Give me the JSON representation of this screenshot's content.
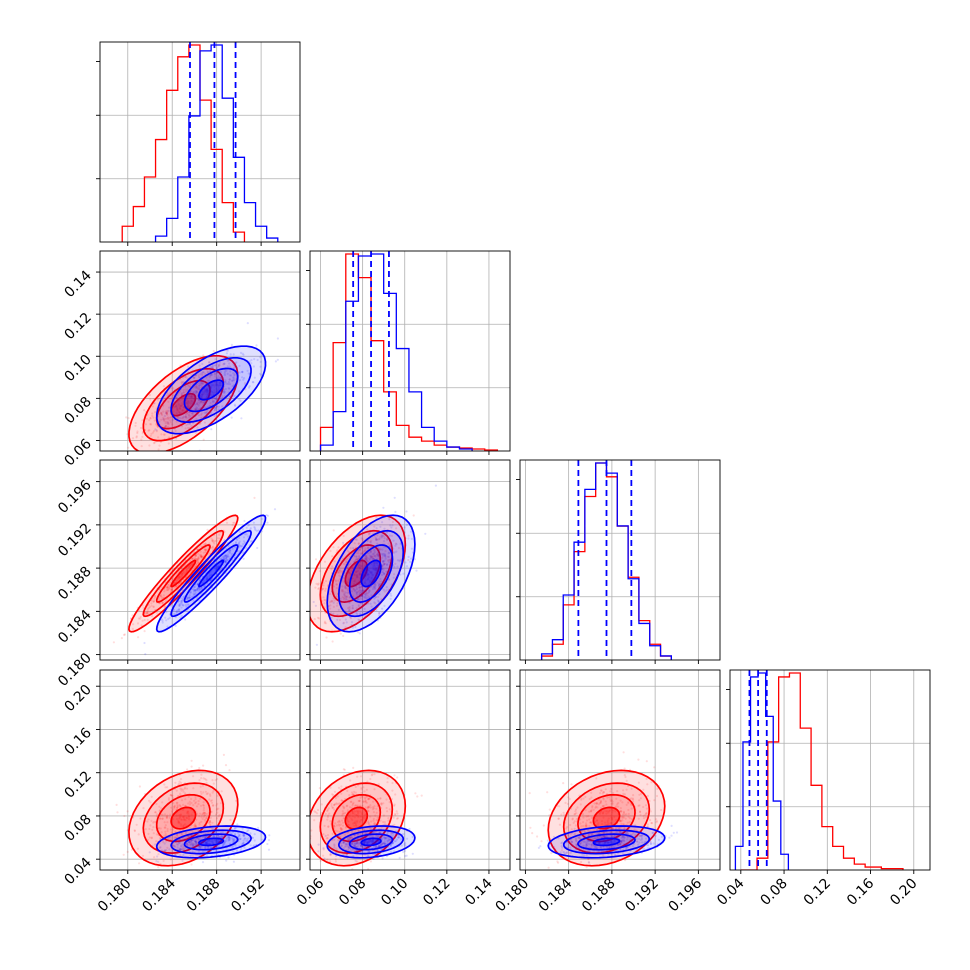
{
  "colors": {
    "series_a": "#ff0000",
    "series_b": "#0000ff",
    "grid": "#b0b0b0"
  },
  "chart_data": {
    "type": "corner",
    "grid": true,
    "params": [
      {
        "id": "p0",
        "range": [
          0.1775,
          0.1955
        ],
        "ticks": [
          "0.180",
          "0.184",
          "0.188",
          "0.192"
        ]
      },
      {
        "id": "p1",
        "range": [
          0.055,
          0.15
        ],
        "ticks": [
          "0.06",
          "0.08",
          "0.10",
          "0.12",
          "0.14"
        ]
      },
      {
        "id": "p2",
        "range": [
          0.1795,
          0.198
        ],
        "ticks": [
          "0.180",
          "0.184",
          "0.188",
          "0.192",
          "0.196"
        ]
      },
      {
        "id": "p3",
        "range": [
          0.03,
          0.215
        ],
        "ticks": [
          "0.04",
          "0.08",
          "0.12",
          "0.16",
          "0.20"
        ]
      }
    ],
    "series": [
      {
        "color": "#ff0000",
        "mean": [
          0.185,
          0.077,
          0.1875,
          0.078
        ],
        "std": [
          0.002,
          0.0095,
          0.0022,
          0.018
        ],
        "corr": {
          "1-0": 0.6,
          "2-0": 0.95,
          "2-1": 0.5,
          "3-0": 0.3,
          "3-1": 0.25,
          "3-2": 0.25
        },
        "hist": [
          {
            "edges": [
              0.1795,
              0.1805,
              0.1815,
              0.1825,
              0.1835,
              0.1845,
              0.1855,
              0.1865,
              0.1875,
              0.1885,
              0.1895,
              0.1905
            ],
            "counts": [
              0.08,
              0.18,
              0.33,
              0.52,
              0.77,
              0.94,
              1.0,
              0.72,
              0.47,
              0.2,
              0.05
            ]
          },
          {
            "edges": [
              0.06,
              0.066,
              0.072,
              0.078,
              0.084,
              0.09,
              0.096,
              0.102,
              0.108,
              0.114,
              0.12,
              0.126,
              0.132,
              0.138,
              0.144
            ],
            "counts": [
              0.12,
              0.55,
              1.0,
              0.88,
              0.56,
              0.3,
              0.13,
              0.07,
              0.05,
              0.03,
              0.02,
              0.015,
              0.01,
              0.005
            ]
          },
          {
            "edges": [
              0.1815,
              0.1825,
              0.1835,
              0.1845,
              0.1855,
              0.1865,
              0.1875,
              0.1885,
              0.1895,
              0.1905,
              0.1915,
              0.1925,
              0.1935
            ],
            "counts": [
              0.02,
              0.08,
              0.28,
              0.55,
              0.83,
              1.0,
              0.93,
              0.68,
              0.42,
              0.2,
              0.08,
              0.02
            ]
          },
          {
            "edges": [
              0.04,
              0.055,
              0.065,
              0.075,
              0.085,
              0.095,
              0.105,
              0.115,
              0.125,
              0.135,
              0.145,
              0.155,
              0.17,
              0.19
            ],
            "counts": [
              0.0,
              0.06,
              0.65,
              0.98,
              1.0,
              0.72,
              0.43,
              0.22,
              0.12,
              0.06,
              0.03,
              0.015,
              0.007
            ]
          }
        ]
      },
      {
        "color": "#0000ff",
        "mean": [
          0.1875,
          0.084,
          0.1875,
          0.056
        ],
        "std": [
          0.002,
          0.0085,
          0.0022,
          0.006
        ],
        "corr": {
          "1-0": 0.6,
          "2-0": 0.95,
          "2-1": 0.5,
          "3-0": 0.3,
          "3-1": 0.25,
          "3-2": 0.25
        },
        "quantiles": [
          [
            0.1856,
            0.1878,
            0.1897
          ],
          [
            0.0755,
            0.084,
            0.0925
          ],
          [
            0.1849,
            0.1875,
            0.1898
          ],
          [
            0.048,
            0.056,
            0.064
          ]
        ],
        "hist": [
          {
            "edges": [
              0.1825,
              0.1835,
              0.1845,
              0.1855,
              0.1865,
              0.1875,
              0.1885,
              0.1895,
              0.1905,
              0.1915,
              0.1925,
              0.1935
            ],
            "counts": [
              0.03,
              0.12,
              0.33,
              0.64,
              0.97,
              1.0,
              0.73,
              0.43,
              0.2,
              0.08,
              0.02
            ]
          },
          {
            "edges": [
              0.06,
              0.066,
              0.072,
              0.078,
              0.084,
              0.09,
              0.096,
              0.102,
              0.108,
              0.114,
              0.12,
              0.126,
              0.132
            ],
            "counts": [
              0.03,
              0.2,
              0.76,
              0.99,
              1.0,
              0.8,
              0.52,
              0.3,
              0.12,
              0.05,
              0.02,
              0.01
            ]
          },
          {
            "edges": [
              0.1815,
              0.1825,
              0.1835,
              0.1845,
              0.1855,
              0.1865,
              0.1875,
              0.1885,
              0.1895,
              0.1905,
              0.1915,
              0.1925,
              0.1935
            ],
            "counts": [
              0.03,
              0.1,
              0.32,
              0.58,
              0.84,
              0.97,
              0.92,
              0.66,
              0.4,
              0.18,
              0.07,
              0.02
            ]
          },
          {
            "edges": [
              0.035,
              0.042,
              0.049,
              0.056,
              0.063,
              0.07,
              0.077,
              0.084
            ],
            "counts": [
              0.12,
              0.65,
              0.98,
              1.0,
              0.78,
              0.35,
              0.08
            ]
          }
        ]
      }
    ]
  }
}
